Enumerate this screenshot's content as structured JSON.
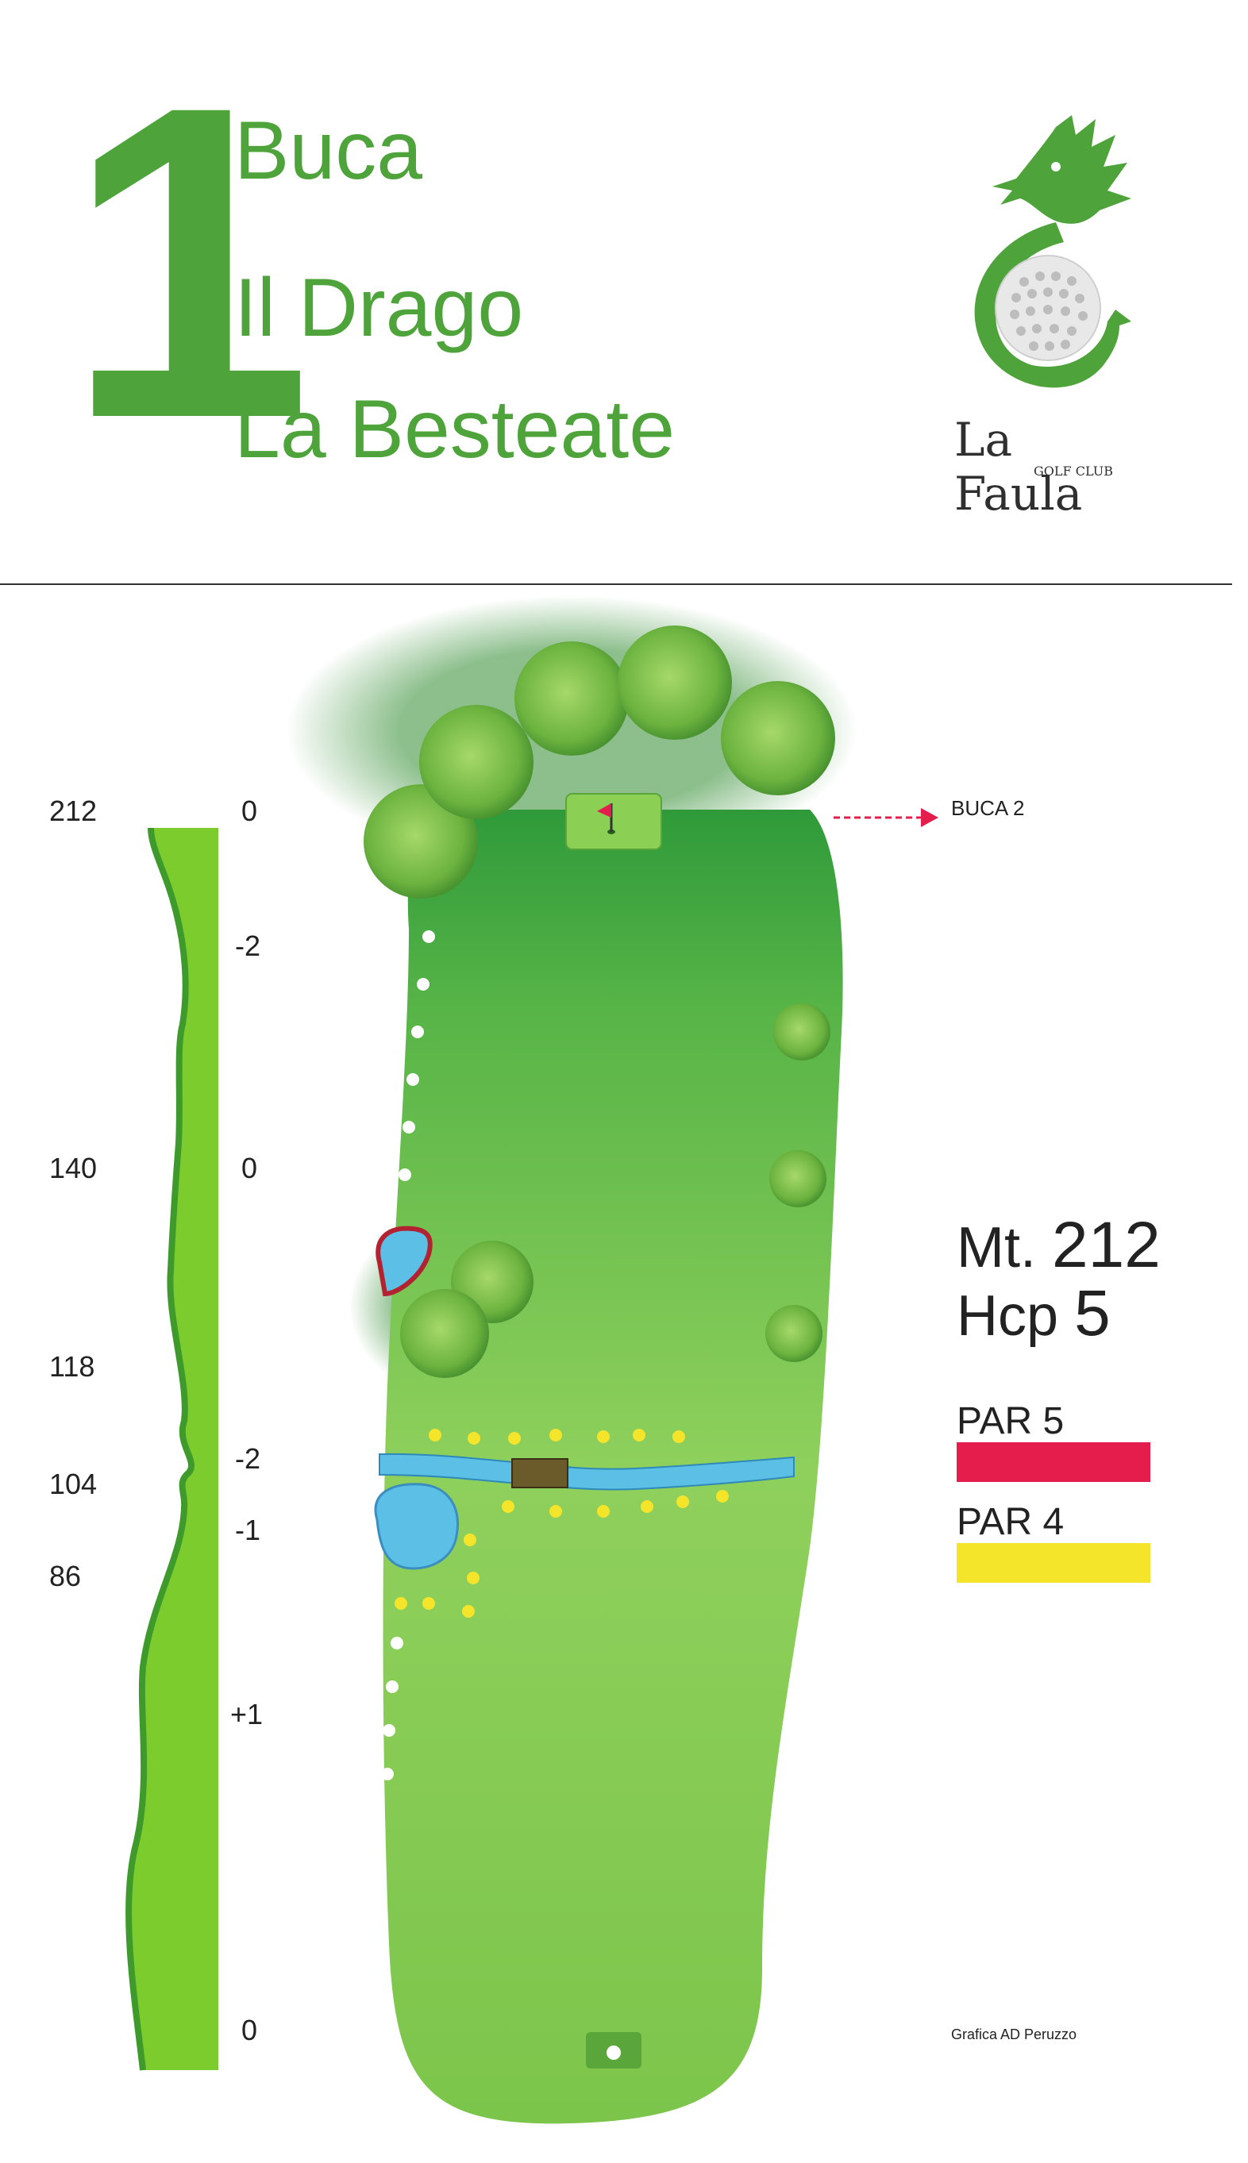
{
  "header": {
    "hole_number": "1",
    "title_line1": "Buca",
    "title_line2": "Il Drago",
    "title_line3": "La Besteate"
  },
  "logo": {
    "name": "La Faula",
    "subtitle": "GOLF CLUB",
    "icon": "dragon-golf-ball-icon"
  },
  "elevation_profile": {
    "distances": [
      "212",
      "140",
      "118",
      "104",
      "86"
    ],
    "levels": [
      "0",
      "-2",
      "0",
      "-2",
      "-1",
      "+1",
      "0"
    ]
  },
  "map": {
    "next_hole_label": "BUCA 2",
    "icons": [
      "flag-icon",
      "tee-icon",
      "tree-icon",
      "pond-icon",
      "bridge-icon"
    ]
  },
  "stats": {
    "mt_label": "Mt.",
    "mt_value": "212",
    "hcp_label": "Hcp",
    "hcp_value": "5"
  },
  "tees": [
    {
      "label": "PAR 5",
      "color": "#e51d4c"
    },
    {
      "label": "PAR 4",
      "color": "#f4e52a"
    }
  ],
  "credit": "Grafica AD Peruzzo",
  "colors": {
    "brand_green": "#4ea43a",
    "fairway": "#7cc54b",
    "water": "#5bbfe6"
  }
}
